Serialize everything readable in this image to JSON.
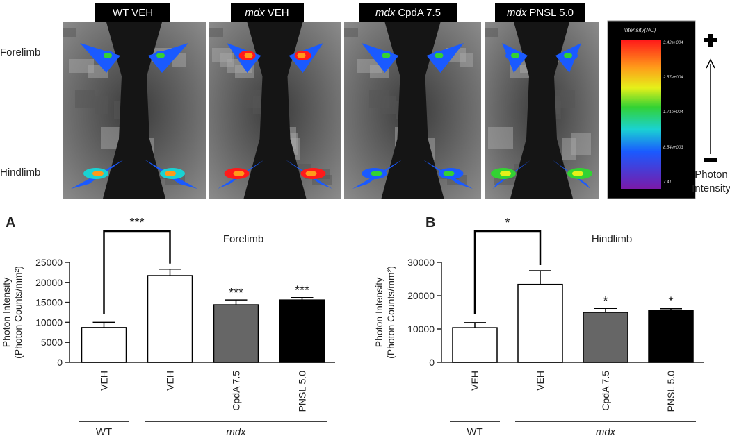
{
  "image_panel": {
    "labels": [
      {
        "genotype": "WT",
        "treatment": "VEH"
      },
      {
        "genotype": "mdx",
        "treatment": "VEH"
      },
      {
        "genotype": "mdx",
        "treatment": "CpdA 7.5"
      },
      {
        "genotype": "mdx",
        "treatment": "PNSL 5.0"
      }
    ],
    "rows": [
      "Forelimb",
      "Hindlimb"
    ],
    "colorbar": {
      "title": "Intensity(NC)",
      "ticks": [
        "3.42e+004",
        "2.57e+004",
        "1.71e+004",
        "8.54e+003",
        "7.41"
      ]
    },
    "scale_label": [
      "Photon",
      "Intensity"
    ]
  },
  "chart_data": [
    {
      "type": "bar",
      "panel_label": "A",
      "title": "Forelimb",
      "ylabel": [
        "Photon Intensity",
        "(Photon Counts/mm²)"
      ],
      "categories": [
        "VEH",
        "VEH",
        "CpdA 7.5",
        "PNSL 5.0"
      ],
      "values": [
        8700,
        21700,
        14400,
        15600
      ],
      "errors": [
        1300,
        1600,
        1200,
        600
      ],
      "colors": [
        "#ffffff",
        "#ffffff",
        "#666666",
        "#000000"
      ],
      "value_stars": [
        null,
        null,
        "***",
        "***"
      ],
      "comparison_label": "***",
      "group_labels": [
        "WT",
        "mdx"
      ],
      "ylim": [
        0,
        25000
      ],
      "yticks": [
        0,
        5000,
        10000,
        15000,
        20000,
        25000
      ]
    },
    {
      "type": "bar",
      "panel_label": "B",
      "title": "Hindlimb",
      "ylabel": [
        "Photon Intensity",
        "(Photon Counts/mm²)"
      ],
      "categories": [
        "VEH",
        "VEH",
        "CpdA 7.5",
        "PNSL 5.0"
      ],
      "values": [
        10400,
        23400,
        15000,
        15600
      ],
      "errors": [
        1500,
        4100,
        1200,
        500
      ],
      "colors": [
        "#ffffff",
        "#ffffff",
        "#666666",
        "#000000"
      ],
      "value_stars": [
        null,
        null,
        "*",
        "*"
      ],
      "comparison_label": "*",
      "group_labels": [
        "WT",
        "mdx"
      ],
      "ylim": [
        0,
        30000
      ],
      "yticks": [
        0,
        10000,
        20000,
        30000
      ]
    }
  ]
}
